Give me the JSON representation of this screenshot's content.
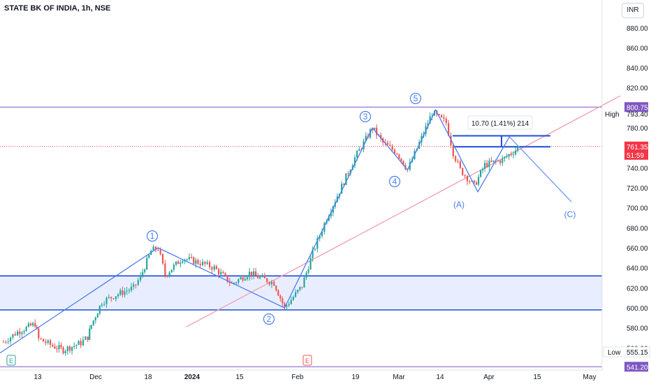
{
  "title": "STATE BK OF INDIA, 1h, NSE",
  "currency_label": "INR",
  "colors": {
    "up": "#26a69a",
    "down": "#ef5350",
    "wave": "#4a7df0",
    "zone_line": "#1e4ed8",
    "zone_fill": "#e8eeff",
    "trend": "#f2a3b3",
    "purple": "#7e57c2",
    "current": "#f23645"
  },
  "chart_data": {
    "type": "candlestick",
    "symbol": "STATE BK OF INDIA",
    "interval": "1h",
    "exchange": "NSE",
    "ylim": [
      541.2,
      900
    ],
    "y_ticks": [
      880,
      860,
      840,
      820,
      780,
      760,
      740,
      720,
      700,
      680,
      660,
      640,
      620,
      600,
      580,
      560
    ],
    "y_tick_labels": [
      "880.00",
      "860.00",
      "840.00",
      "820.00",
      "780.00",
      "760.00",
      "740.00",
      "720.00",
      "700.00",
      "680.00",
      "660.00",
      "640.00",
      "620.00",
      "600.00",
      "580.00",
      "560.00"
    ],
    "x_ticks": [
      "13",
      "Dec",
      "18",
      "2024",
      "15",
      "Feb",
      "19",
      "Mar",
      "14",
      "Apr",
      "15",
      "May"
    ],
    "price_series": [
      {
        "date": "2023-11-06",
        "price": 566
      },
      {
        "date": "2023-11-10",
        "price": 576
      },
      {
        "date": "2023-11-15",
        "price": 584
      },
      {
        "date": "2023-11-16",
        "price": 569
      },
      {
        "date": "2023-11-20",
        "price": 562
      },
      {
        "date": "2023-11-23",
        "price": 558
      },
      {
        "date": "2023-11-28",
        "price": 565
      },
      {
        "date": "2023-11-30",
        "price": 571
      },
      {
        "date": "2023-12-01",
        "price": 583
      },
      {
        "date": "2023-12-04",
        "price": 606
      },
      {
        "date": "2023-12-08",
        "price": 613
      },
      {
        "date": "2023-12-13",
        "price": 620
      },
      {
        "date": "2023-12-15",
        "price": 631
      },
      {
        "date": "2023-12-18",
        "price": 657
      },
      {
        "date": "2023-12-20",
        "price": 660
      },
      {
        "date": "2023-12-22",
        "price": 633
      },
      {
        "date": "2023-12-27",
        "price": 650
      },
      {
        "date": "2024-01-01",
        "price": 645
      },
      {
        "date": "2024-01-05",
        "price": 640
      },
      {
        "date": "2024-01-10",
        "price": 624
      },
      {
        "date": "2024-01-15",
        "price": 635
      },
      {
        "date": "2024-01-18",
        "price": 630
      },
      {
        "date": "2024-01-22",
        "price": 625
      },
      {
        "date": "2024-01-25",
        "price": 600
      },
      {
        "date": "2024-01-30",
        "price": 622
      },
      {
        "date": "2024-02-02",
        "price": 655
      },
      {
        "date": "2024-02-06",
        "price": 690
      },
      {
        "date": "2024-02-09",
        "price": 712
      },
      {
        "date": "2024-02-14",
        "price": 750
      },
      {
        "date": "2024-02-19",
        "price": 780
      },
      {
        "date": "2024-02-22",
        "price": 765
      },
      {
        "date": "2024-02-26",
        "price": 755
      },
      {
        "date": "2024-02-29",
        "price": 738
      },
      {
        "date": "2024-03-04",
        "price": 770
      },
      {
        "date": "2024-03-07",
        "price": 795
      },
      {
        "date": "2024-03-11",
        "price": 785
      },
      {
        "date": "2024-03-13",
        "price": 755
      },
      {
        "date": "2024-03-15",
        "price": 738
      },
      {
        "date": "2024-03-19",
        "price": 722
      },
      {
        "date": "2024-03-22",
        "price": 743
      },
      {
        "date": "2024-03-27",
        "price": 748
      },
      {
        "date": "2024-04-01",
        "price": 761.35
      }
    ],
    "horizontal_levels": [
      {
        "label": "800.75",
        "value": 800.75
      },
      {
        "label": "541.20",
        "value": 541.2
      }
    ],
    "zone": {
      "top": 632,
      "bottom": 598
    },
    "target_box": {
      "top": 772,
      "bottom": 761
    },
    "wave_labels": [
      "1",
      "2",
      "3",
      "4",
      "5",
      "(A)",
      "(C)"
    ],
    "measure_label": "10.70 (1.41%) 214",
    "high_label": "High",
    "high_value": "793.40",
    "low_label": "Low",
    "low_value": "555.15",
    "current_price": "761.35",
    "countdown": "51:59",
    "event_markers": [
      "E",
      "E"
    ]
  }
}
